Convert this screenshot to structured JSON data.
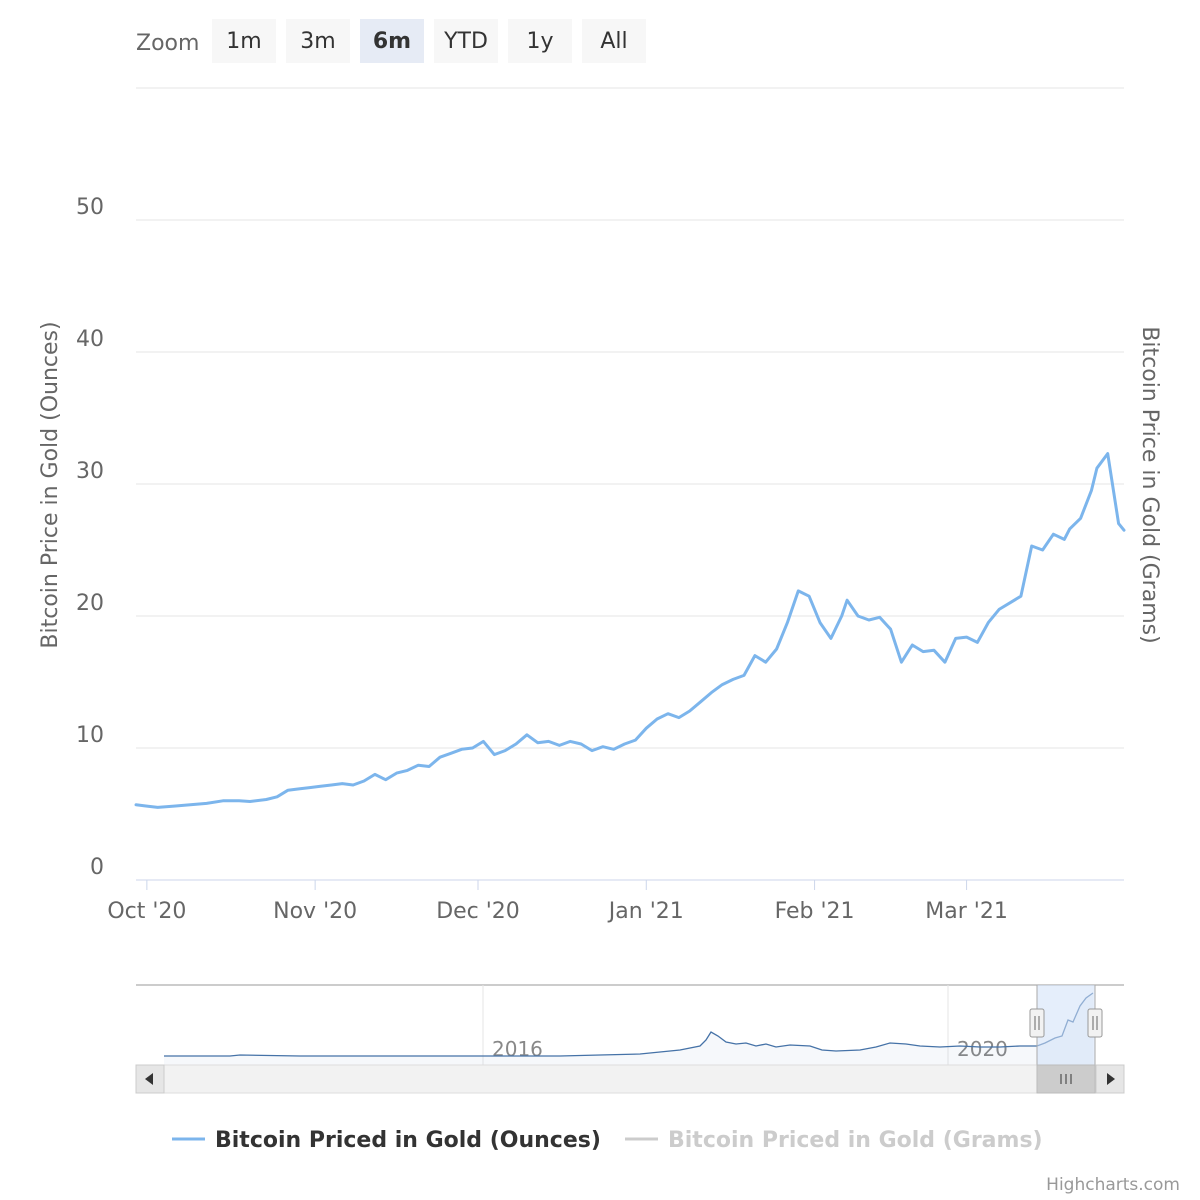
{
  "zoom": {
    "label": "Zoom",
    "selected": "6m",
    "buttons": [
      "1m",
      "3m",
      "6m",
      "YTD",
      "1y",
      "All"
    ]
  },
  "colors": {
    "series_ounces": "#7cb5ec",
    "series_grams_inactive": "#cccccc",
    "grid": "#e6e6e6",
    "navigator_mask": "#cfe0f7",
    "navigator_line": "#4572a7",
    "button_bg": "#f7f7f7",
    "button_selected_bg": "#e6ebf5",
    "label": "#666666"
  },
  "legend": {
    "items": [
      {
        "label": "Bitcoin Priced in Gold (Ounces)",
        "active": true
      },
      {
        "label": "Bitcoin Priced in Gold (Grams)",
        "active": false
      }
    ]
  },
  "navigator": {
    "year_labels": [
      "2016",
      "2020"
    ],
    "scroll_left_icon": "arrow-left-icon",
    "scroll_right_icon": "arrow-right-icon",
    "grip_icon": "grip-icon"
  },
  "credits": "Highcharts.com",
  "chart_data": {
    "type": "line",
    "ylabel_left": "Bitcoin Price in Gold (Ounces)",
    "ylabel_right": "Bitcoin Price in Gold (Grams)",
    "ylim": [
      0,
      60
    ],
    "yticks": [
      0,
      10,
      20,
      30,
      40,
      50
    ],
    "xlim": [
      "2020-09-29",
      "2021-03-30"
    ],
    "xticks": [
      {
        "date": "2020-10-01",
        "label": "Oct '20"
      },
      {
        "date": "2020-11-01",
        "label": "Nov '20"
      },
      {
        "date": "2020-12-01",
        "label": "Dec '20"
      },
      {
        "date": "2021-01-01",
        "label": "Jan '21"
      },
      {
        "date": "2021-02-01",
        "label": "Feb '21"
      },
      {
        "date": "2021-03-01",
        "label": "Mar '21"
      }
    ],
    "grid": true,
    "legend_position": "bottom-center",
    "series": [
      {
        "name": "Bitcoin Priced in Gold (Ounces)",
        "points": [
          [
            "2020-09-29",
            5.7
          ],
          [
            "2020-10-01",
            5.6
          ],
          [
            "2020-10-03",
            5.5
          ],
          [
            "2020-10-06",
            5.6
          ],
          [
            "2020-10-09",
            5.7
          ],
          [
            "2020-10-12",
            5.8
          ],
          [
            "2020-10-15",
            6.0
          ],
          [
            "2020-10-18",
            6.0
          ],
          [
            "2020-10-20",
            5.95
          ],
          [
            "2020-10-23",
            6.1
          ],
          [
            "2020-10-25",
            6.3
          ],
          [
            "2020-10-27",
            6.8
          ],
          [
            "2020-10-29",
            6.9
          ],
          [
            "2020-10-31",
            7.0
          ],
          [
            "2020-11-02",
            7.1
          ],
          [
            "2020-11-04",
            7.2
          ],
          [
            "2020-11-06",
            7.3
          ],
          [
            "2020-11-08",
            7.2
          ],
          [
            "2020-11-10",
            7.5
          ],
          [
            "2020-11-12",
            8.0
          ],
          [
            "2020-11-14",
            7.6
          ],
          [
            "2020-11-16",
            8.1
          ],
          [
            "2020-11-18",
            8.3
          ],
          [
            "2020-11-20",
            8.7
          ],
          [
            "2020-11-22",
            8.6
          ],
          [
            "2020-11-24",
            9.3
          ],
          [
            "2020-11-26",
            9.6
          ],
          [
            "2020-11-28",
            9.9
          ],
          [
            "2020-11-30",
            10.0
          ],
          [
            "2020-12-02",
            10.5
          ],
          [
            "2020-12-04",
            9.5
          ],
          [
            "2020-12-06",
            9.8
          ],
          [
            "2020-12-08",
            10.3
          ],
          [
            "2020-12-10",
            11.0
          ],
          [
            "2020-12-12",
            10.4
          ],
          [
            "2020-12-14",
            10.5
          ],
          [
            "2020-12-16",
            10.2
          ],
          [
            "2020-12-18",
            10.5
          ],
          [
            "2020-12-20",
            10.3
          ],
          [
            "2020-12-22",
            9.8
          ],
          [
            "2020-12-24",
            10.1
          ],
          [
            "2020-12-26",
            9.9
          ],
          [
            "2020-12-28",
            10.3
          ],
          [
            "2020-12-30",
            10.6
          ],
          [
            "2021-01-01",
            11.5
          ],
          [
            "2021-01-03",
            12.2
          ],
          [
            "2021-01-05",
            12.6
          ],
          [
            "2021-01-07",
            12.3
          ],
          [
            "2021-01-09",
            12.8
          ],
          [
            "2021-01-11",
            13.5
          ],
          [
            "2021-01-13",
            14.2
          ],
          [
            "2021-01-15",
            14.8
          ],
          [
            "2021-01-17",
            15.2
          ],
          [
            "2021-01-19",
            15.5
          ],
          [
            "2021-01-21",
            17.0
          ],
          [
            "2021-01-23",
            16.5
          ],
          [
            "2021-01-25",
            17.5
          ],
          [
            "2021-01-27",
            19.5
          ],
          [
            "2021-01-29",
            21.9
          ],
          [
            "2021-01-31",
            21.5
          ],
          [
            "2021-02-02",
            19.5
          ],
          [
            "2021-02-04",
            18.3
          ],
          [
            "2021-02-06",
            20.0
          ],
          [
            "2021-02-07",
            21.2
          ],
          [
            "2021-02-09",
            20.0
          ],
          [
            "2021-02-11",
            19.7
          ],
          [
            "2021-02-13",
            19.9
          ],
          [
            "2021-02-15",
            19.0
          ],
          [
            "2021-02-17",
            16.5
          ],
          [
            "2021-02-19",
            17.8
          ],
          [
            "2021-02-21",
            17.3
          ],
          [
            "2021-02-23",
            17.4
          ],
          [
            "2021-02-25",
            16.5
          ],
          [
            "2021-02-27",
            18.3
          ],
          [
            "2021-03-01",
            18.4
          ],
          [
            "2021-03-03",
            18.0
          ],
          [
            "2021-03-05",
            19.5
          ],
          [
            "2021-03-07",
            20.5
          ],
          [
            "2021-03-09",
            21.0
          ],
          [
            "2021-03-11",
            21.5
          ],
          [
            "2021-03-13",
            25.3
          ],
          [
            "2021-03-15",
            25.0
          ],
          [
            "2021-03-17",
            26.2
          ],
          [
            "2021-03-19",
            25.8
          ],
          [
            "2021-03-20",
            26.6
          ],
          [
            "2021-03-22",
            27.4
          ],
          [
            "2021-03-24",
            29.5
          ],
          [
            "2021-03-25",
            31.2
          ],
          [
            "2021-03-27",
            32.3
          ],
          [
            "2021-03-29",
            27.0
          ],
          [
            "2021-03-30",
            26.5
          ]
        ]
      }
    ]
  }
}
